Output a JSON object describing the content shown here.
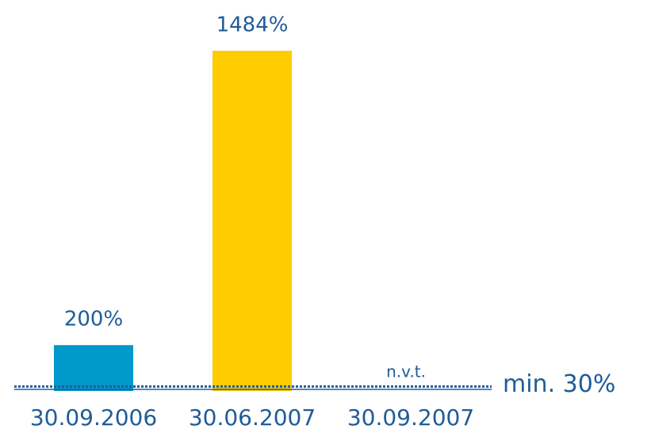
{
  "chart_data": {
    "type": "bar",
    "categories": [
      "30.09.2006",
      "30.06.2007",
      "30.09.2007"
    ],
    "values": [
      200,
      1484,
      null
    ],
    "value_labels": [
      "200%",
      "1484%",
      "n.v.t."
    ],
    "colors": [
      "#0099cc",
      "#ffcc00",
      null
    ],
    "ylim": [
      0,
      1500
    ],
    "threshold": {
      "value": 30,
      "label": "min. 30%",
      "color": "#1f5c99"
    }
  }
}
